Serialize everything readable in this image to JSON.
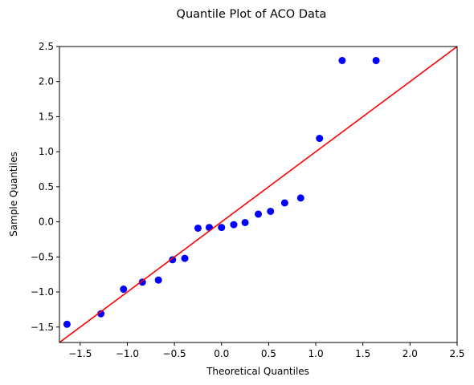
{
  "chart_data": {
    "type": "scatter",
    "title": "Quantile Plot of ACO Data",
    "xlabel": "Theoretical Quantiles",
    "ylabel": "Sample Quantiles",
    "xlim": [
      -1.72,
      2.5
    ],
    "ylim": [
      -1.72,
      2.5
    ],
    "xticks": [
      -1.5,
      -1.0,
      -0.5,
      0.0,
      0.5,
      1.0,
      1.5,
      2.0,
      2.5
    ],
    "yticks": [
      -1.5,
      -1.0,
      -0.5,
      0.0,
      0.5,
      1.0,
      1.5,
      2.0,
      2.5
    ],
    "xtick_labels": [
      "−1.5",
      "−1.0",
      "−0.5",
      "0.0",
      "0.5",
      "1.0",
      "1.5",
      "2.0",
      "2.5"
    ],
    "ytick_labels": [
      "−1.5",
      "−1.0",
      "−0.5",
      "0.0",
      "0.5",
      "1.0",
      "1.5",
      "2.0",
      "2.5"
    ],
    "grid": false,
    "points": [
      {
        "x": -1.64,
        "y": -1.46
      },
      {
        "x": -1.28,
        "y": -1.31
      },
      {
        "x": -1.04,
        "y": -0.96
      },
      {
        "x": -0.84,
        "y": -0.86
      },
      {
        "x": -0.67,
        "y": -0.83
      },
      {
        "x": -0.52,
        "y": -0.54
      },
      {
        "x": -0.39,
        "y": -0.52
      },
      {
        "x": -0.25,
        "y": -0.09
      },
      {
        "x": -0.13,
        "y": -0.08
      },
      {
        "x": 0.0,
        "y": -0.08
      },
      {
        "x": 0.13,
        "y": -0.04
      },
      {
        "x": 0.25,
        "y": -0.01
      },
      {
        "x": 0.39,
        "y": 0.11
      },
      {
        "x": 0.52,
        "y": 0.15
      },
      {
        "x": 0.67,
        "y": 0.27
      },
      {
        "x": 0.84,
        "y": 0.34
      },
      {
        "x": 1.04,
        "y": 1.19
      },
      {
        "x": 1.28,
        "y": 2.3
      },
      {
        "x": 1.64,
        "y": 2.3
      }
    ],
    "reference_line": {
      "x": [
        -1.72,
        2.5
      ],
      "y": [
        -1.72,
        2.5
      ]
    },
    "point_color": "#0000ff",
    "line_color": "#ff0000"
  }
}
